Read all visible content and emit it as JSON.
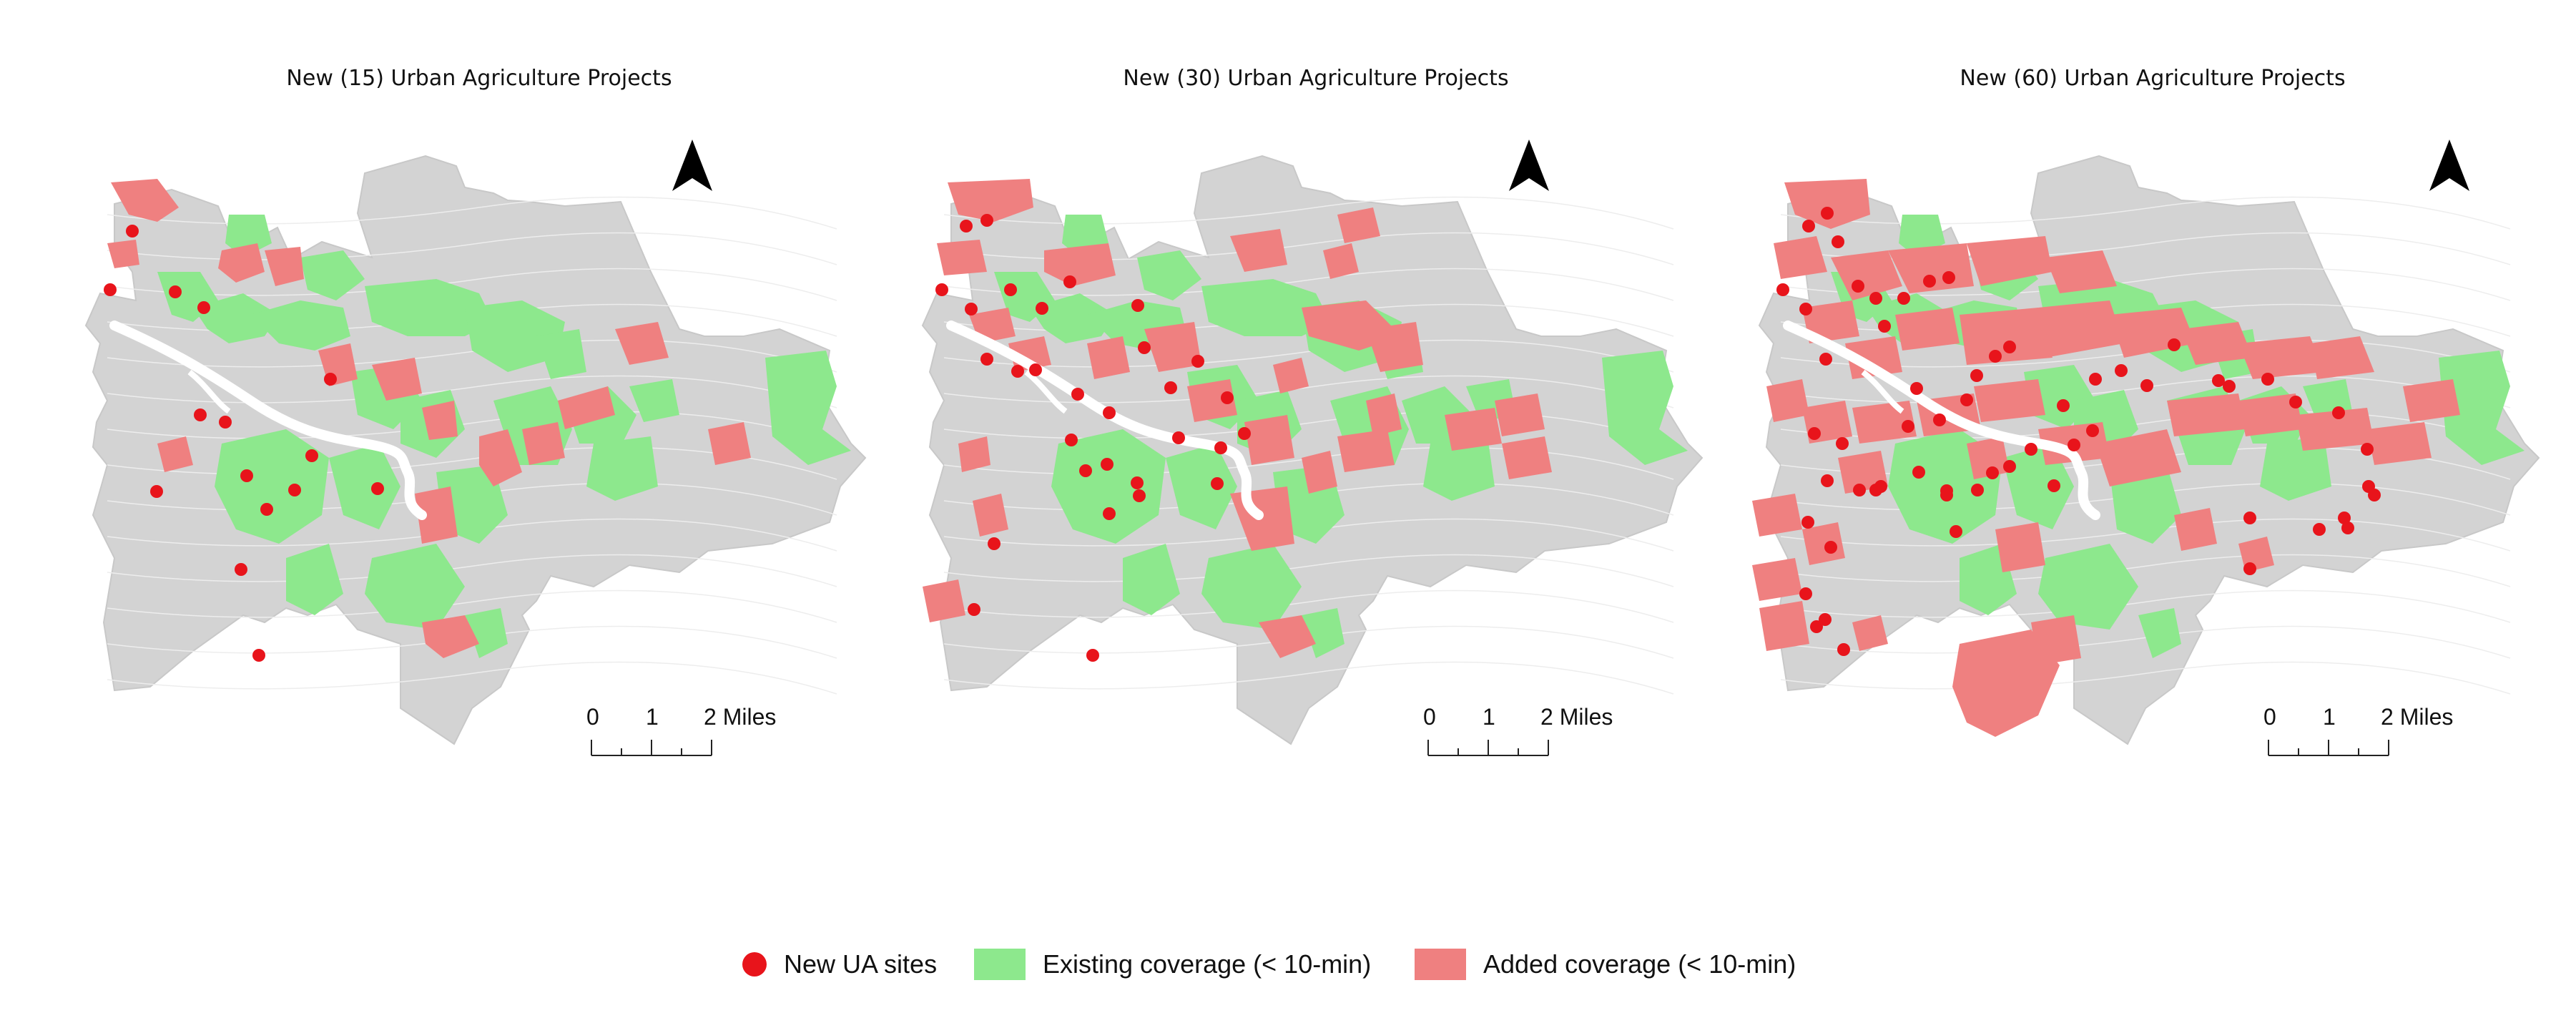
{
  "colors": {
    "background_region": "#d3d3d3",
    "existing_coverage": "#8de88d",
    "added_coverage": "#ef8080",
    "new_site": "#e8141b",
    "river": "#ffffff"
  },
  "panels": [
    {
      "title": "New (15) Urban Agriculture Projects",
      "new_sites": 15
    },
    {
      "title": "New (30) Urban Agriculture Projects",
      "new_sites": 30
    },
    {
      "title": "New (60) Urban Agriculture Projects",
      "new_sites": 60
    }
  ],
  "scalebar": {
    "labels": [
      "0",
      "1",
      "2 Miles"
    ]
  },
  "north_arrow": {
    "icon": "north-arrow-icon"
  },
  "legend": {
    "items": [
      {
        "label": "New UA sites",
        "icon": "red-dot",
        "color": "#e8141b"
      },
      {
        "label": "Existing coverage (< 10-min)",
        "icon": "green-swatch",
        "color": "#8de88d"
      },
      {
        "label": "Added coverage (< 10-min)",
        "icon": "red-swatch",
        "color": "#ef8080"
      }
    ]
  }
}
